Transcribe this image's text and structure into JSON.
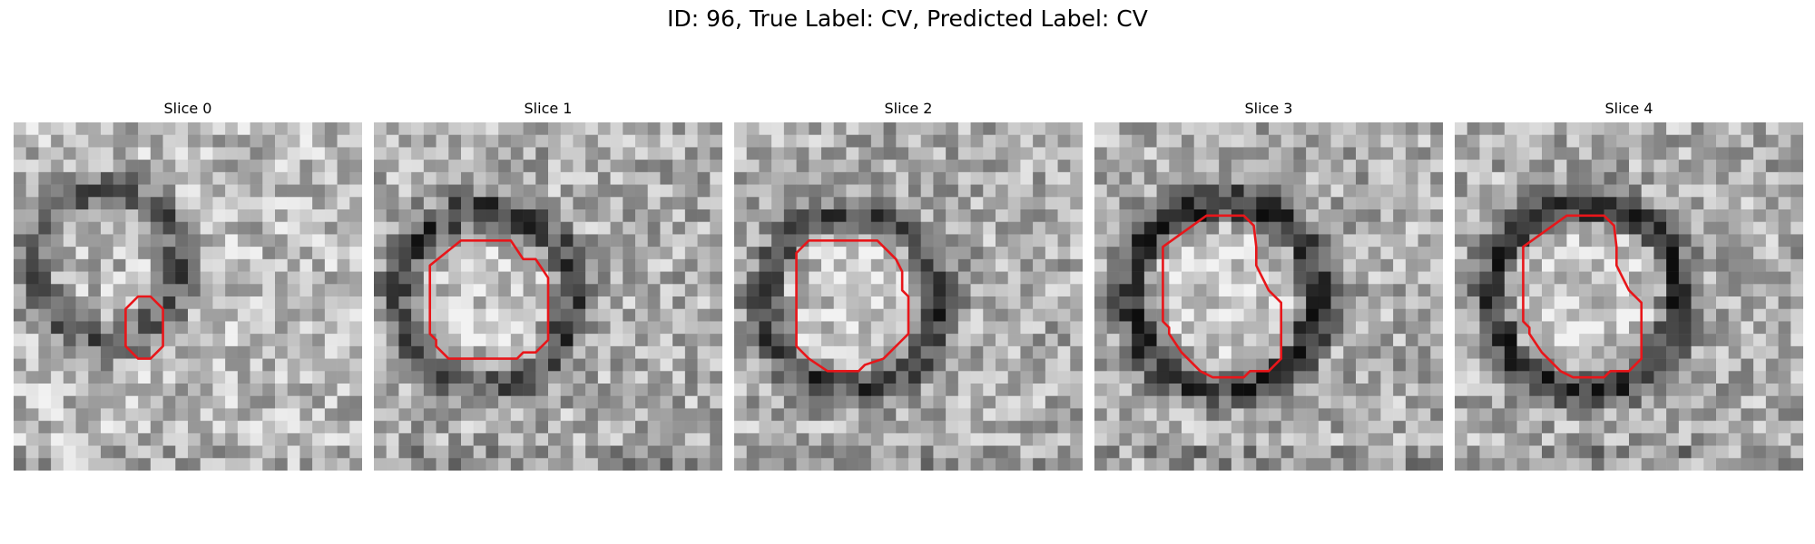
{
  "figure": {
    "title": "ID: 96, True Label: CV, Predicted Label: CV",
    "contour_color": "#e8161a",
    "slices": [
      {
        "label": "Slice 0",
        "contour": [
          [
            10,
            14
          ],
          [
            11,
            14
          ],
          [
            12,
            15
          ],
          [
            12,
            18
          ],
          [
            11,
            19
          ],
          [
            10,
            19
          ],
          [
            9,
            18
          ],
          [
            9,
            15
          ]
        ]
      },
      {
        "label": "Slice 1",
        "contour": [
          [
            7,
            9.5
          ],
          [
            11,
            9.5
          ],
          [
            12,
            11
          ],
          [
            13,
            11
          ],
          [
            14,
            12.5
          ],
          [
            14,
            17.5
          ],
          [
            13,
            18.5
          ],
          [
            12,
            18.5
          ],
          [
            11.5,
            19
          ],
          [
            6,
            19
          ],
          [
            5,
            18
          ],
          [
            5,
            17.5
          ],
          [
            4.5,
            17
          ],
          [
            4.5,
            11.5
          ]
        ]
      },
      {
        "label": "Slice 2",
        "contour": [
          [
            6,
            9.5
          ],
          [
            11.5,
            9.5
          ],
          [
            13,
            11
          ],
          [
            13.5,
            12
          ],
          [
            13.5,
            13.5
          ],
          [
            14,
            14
          ],
          [
            14,
            17
          ],
          [
            13.5,
            17.5
          ],
          [
            12,
            19
          ],
          [
            10.5,
            19.5
          ],
          [
            10,
            20
          ],
          [
            7.5,
            20
          ],
          [
            6,
            19
          ],
          [
            5,
            18
          ],
          [
            5,
            10.5
          ]
        ]
      },
      {
        "label": "Slice 3",
        "contour": [
          [
            9,
            7.5
          ],
          [
            12,
            7.5
          ],
          [
            12.8,
            8.3
          ],
          [
            13,
            10
          ],
          [
            13,
            11.5
          ],
          [
            13.5,
            12.5
          ],
          [
            14,
            13.5
          ],
          [
            15,
            14.5
          ],
          [
            15,
            19
          ],
          [
            14,
            20
          ],
          [
            12.5,
            20
          ],
          [
            12,
            20.5
          ],
          [
            9.5,
            20.5
          ],
          [
            8.5,
            20
          ],
          [
            8,
            19.5
          ],
          [
            7.5,
            19
          ],
          [
            7,
            18.5
          ],
          [
            6,
            17
          ],
          [
            6,
            16.5
          ],
          [
            5.5,
            16
          ],
          [
            5.5,
            10
          ]
        ]
      },
      {
        "label": "Slice 4",
        "contour": [
          [
            9,
            7.5
          ],
          [
            12,
            7.5
          ],
          [
            12.8,
            8.3
          ],
          [
            13,
            10
          ],
          [
            13,
            11.5
          ],
          [
            13.5,
            12.5
          ],
          [
            14,
            13.5
          ],
          [
            15,
            14.5
          ],
          [
            15,
            19
          ],
          [
            14,
            20
          ],
          [
            12.5,
            20
          ],
          [
            12,
            20.5
          ],
          [
            9.5,
            20.5
          ],
          [
            8.5,
            20
          ],
          [
            8,
            19.5
          ],
          [
            7.5,
            19
          ],
          [
            7,
            18.5
          ],
          [
            6,
            17
          ],
          [
            6,
            16.5
          ],
          [
            5.5,
            16
          ],
          [
            5.5,
            10
          ]
        ]
      }
    ]
  }
}
